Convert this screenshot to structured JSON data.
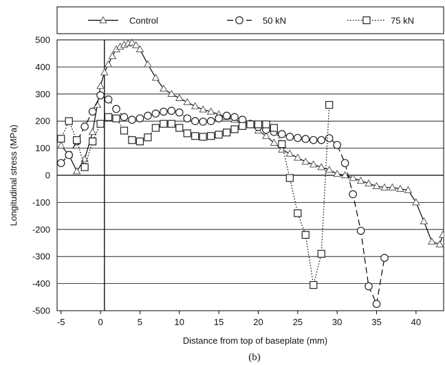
{
  "chart_data": {
    "type": "line",
    "title": "",
    "panel_label": "(b)",
    "xlabel": "Distance from top of baseplate (mm)",
    "ylabel": "Longitudinal stress (MPa)",
    "xlim": [
      -5.5,
      43.5
    ],
    "ylim": [
      -500,
      500
    ],
    "x_ticks": [
      -5,
      0,
      5,
      10,
      15,
      20,
      25,
      30,
      35,
      40
    ],
    "y_ticks": [
      500,
      400,
      300,
      200,
      100,
      0,
      -100,
      -200,
      -300,
      -400,
      -500
    ],
    "grid": "horizontal",
    "zero_line_x": 0.5,
    "legend_position": "top",
    "series": [
      {
        "name": "Control",
        "marker": "triangle",
        "line": "solid",
        "points": [
          [
            -5,
            110
          ],
          [
            -4,
            75
          ],
          [
            -3,
            15
          ],
          [
            -2,
            60
          ],
          [
            -1,
            160
          ],
          [
            -0.4,
            260
          ],
          [
            0,
            330
          ],
          [
            0.5,
            380
          ],
          [
            1,
            410
          ],
          [
            1.5,
            440
          ],
          [
            2,
            465
          ],
          [
            2.5,
            475
          ],
          [
            3,
            482
          ],
          [
            3.5,
            487
          ],
          [
            4,
            490
          ],
          [
            4.5,
            480
          ],
          [
            5,
            465
          ],
          [
            6,
            410
          ],
          [
            7,
            360
          ],
          [
            8,
            320
          ],
          [
            9,
            300
          ],
          [
            10,
            285
          ],
          [
            11,
            270
          ],
          [
            12,
            255
          ],
          [
            13,
            243
          ],
          [
            14,
            235
          ],
          [
            15,
            225
          ],
          [
            16,
            215
          ],
          [
            17,
            205
          ],
          [
            18,
            195
          ],
          [
            19,
            185
          ],
          [
            20,
            165
          ],
          [
            21,
            145
          ],
          [
            22,
            120
          ],
          [
            23,
            95
          ],
          [
            24,
            80
          ],
          [
            25,
            65
          ],
          [
            26,
            50
          ],
          [
            27,
            40
          ],
          [
            28,
            30
          ],
          [
            29,
            20
          ],
          [
            30,
            5
          ],
          [
            31,
            0
          ],
          [
            32,
            -10
          ],
          [
            33,
            -20
          ],
          [
            34,
            -30
          ],
          [
            35,
            -40
          ],
          [
            36,
            -45
          ],
          [
            37,
            -45
          ],
          [
            38,
            -50
          ],
          [
            39,
            -55
          ],
          [
            40,
            -100
          ],
          [
            41,
            -170
          ],
          [
            42,
            -245
          ],
          [
            43,
            -255
          ],
          [
            43.4,
            -220
          ]
        ]
      },
      {
        "name": "50 kN",
        "marker": "circle",
        "line": "dashed",
        "points": [
          [
            -5,
            45
          ],
          [
            -4,
            75
          ],
          [
            -3,
            125
          ],
          [
            -2,
            180
          ],
          [
            -1,
            235
          ],
          [
            0,
            295
          ],
          [
            1,
            280
          ],
          [
            2,
            245
          ],
          [
            3,
            215
          ],
          [
            4,
            205
          ],
          [
            5,
            210
          ],
          [
            6,
            220
          ],
          [
            7,
            228
          ],
          [
            8,
            235
          ],
          [
            9,
            238
          ],
          [
            10,
            232
          ],
          [
            11,
            210
          ],
          [
            12,
            200
          ],
          [
            13,
            198
          ],
          [
            14,
            200
          ],
          [
            15,
            210
          ],
          [
            16,
            220
          ],
          [
            17,
            215
          ],
          [
            18,
            205
          ],
          [
            19,
            190
          ],
          [
            20,
            178
          ],
          [
            21,
            168
          ],
          [
            22,
            160
          ],
          [
            23,
            152
          ],
          [
            24,
            142
          ],
          [
            25,
            138
          ],
          [
            26,
            134
          ],
          [
            27,
            130
          ],
          [
            28,
            130
          ],
          [
            29,
            137
          ],
          [
            30,
            112
          ],
          [
            31,
            45
          ],
          [
            32,
            -70
          ],
          [
            33,
            -205
          ],
          [
            34,
            -410
          ],
          [
            35,
            -475
          ],
          [
            36,
            -305
          ]
        ]
      },
      {
        "name": "75 kN",
        "marker": "square",
        "line": "dotted",
        "points": [
          [
            -5,
            135
          ],
          [
            -4,
            200
          ],
          [
            -3,
            130
          ],
          [
            -2,
            30
          ],
          [
            -1,
            125
          ],
          [
            0,
            190
          ],
          [
            1,
            215
          ],
          [
            2,
            210
          ],
          [
            3,
            165
          ],
          [
            4,
            130
          ],
          [
            5,
            125
          ],
          [
            6,
            140
          ],
          [
            7,
            175
          ],
          [
            8,
            190
          ],
          [
            9,
            190
          ],
          [
            10,
            175
          ],
          [
            11,
            155
          ],
          [
            12,
            145
          ],
          [
            13,
            142
          ],
          [
            14,
            145
          ],
          [
            15,
            150
          ],
          [
            16,
            158
          ],
          [
            17,
            170
          ],
          [
            18,
            182
          ],
          [
            19,
            188
          ],
          [
            20,
            188
          ],
          [
            21,
            188
          ],
          [
            22,
            175
          ],
          [
            23,
            115
          ],
          [
            24,
            -10
          ],
          [
            25,
            -140
          ],
          [
            26,
            -220
          ],
          [
            27,
            -405
          ],
          [
            28,
            -290
          ],
          [
            29,
            260
          ]
        ]
      }
    ]
  }
}
